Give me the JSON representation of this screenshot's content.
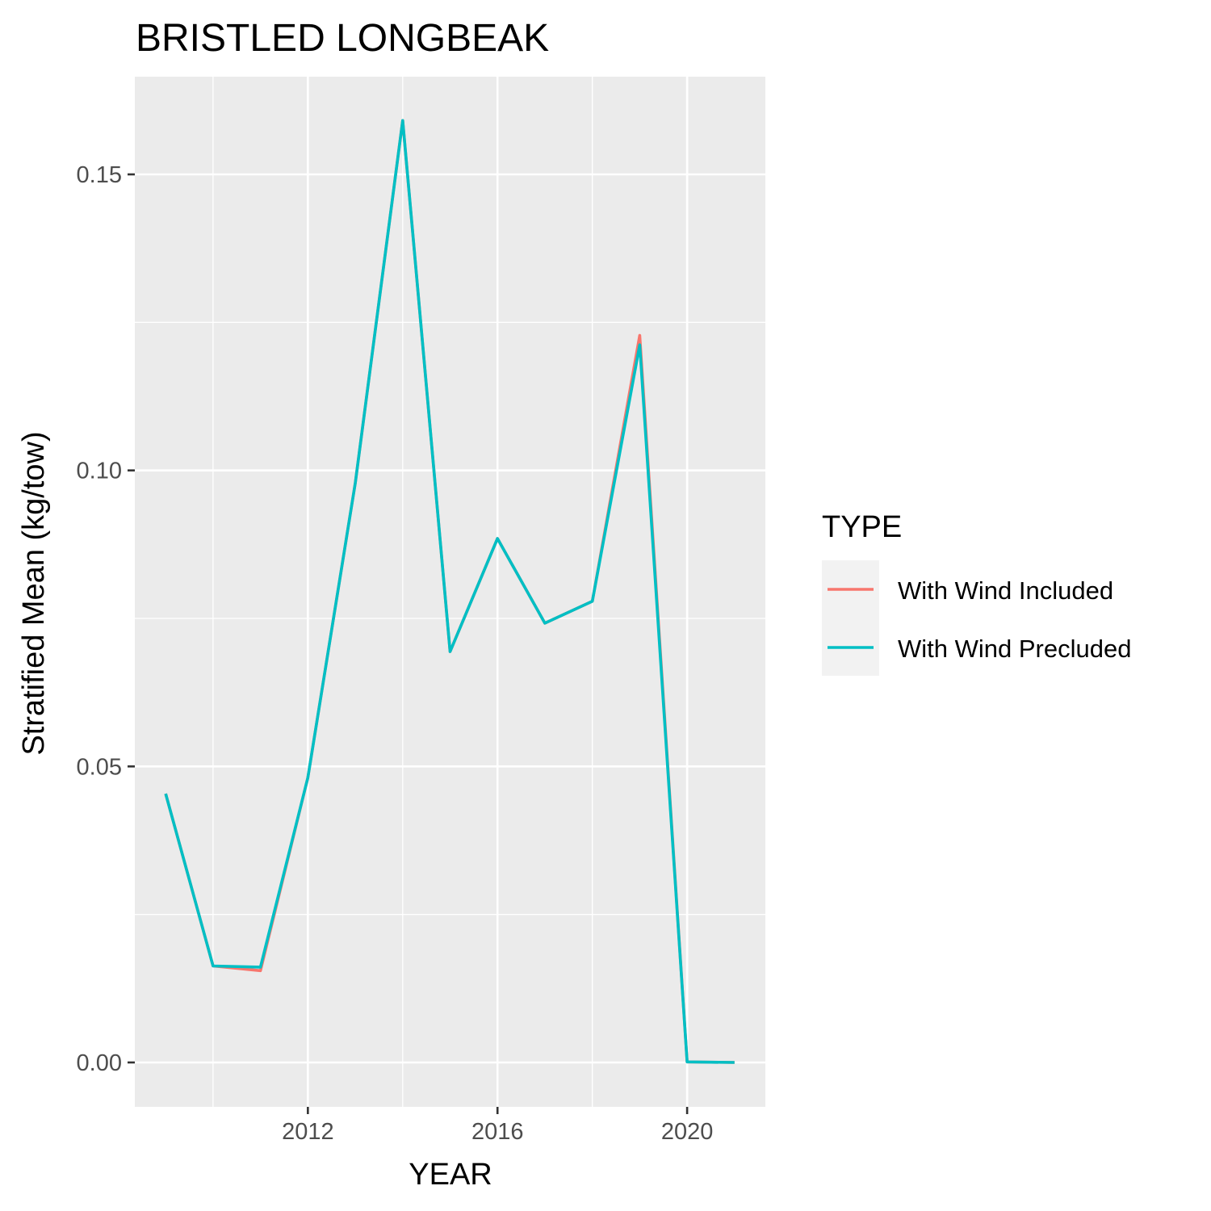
{
  "chart_data": {
    "type": "line",
    "title": "BRISTLED LONGBEAK",
    "xlabel": "YEAR",
    "ylabel": "Stratified Mean (kg/tow)",
    "x": [
      2009,
      2010,
      2011,
      2012,
      2013,
      2014,
      2015,
      2016,
      2017,
      2018,
      2019,
      2020,
      2021
    ],
    "xlim": [
      2008.35,
      2021.65
    ],
    "ylim": [
      -0.0075,
      0.1665
    ],
    "x_ticks": [
      2012,
      2016,
      2020
    ],
    "x_tick_labels": [
      "2012",
      "2016",
      "2020"
    ],
    "x_minor": [
      2010,
      2014,
      2018
    ],
    "y_ticks": [
      0.0,
      0.05,
      0.1,
      0.15
    ],
    "y_tick_labels": [
      "0.00",
      "0.05",
      "0.10",
      "0.15"
    ],
    "y_minor": [
      0.025,
      0.075,
      0.125
    ],
    "grid": true,
    "legend_title": "TYPE",
    "legend_position": "right",
    "series": [
      {
        "name": "With Wind Included",
        "color": "#F8766D",
        "values": [
          0.0454,
          0.0163,
          0.0155,
          0.0481,
          0.0979,
          0.1591,
          0.0694,
          0.0885,
          0.0742,
          0.0779,
          0.1228,
          0.0001,
          0.0
        ]
      },
      {
        "name": "With Wind Precluded",
        "color": "#00BFC4",
        "values": [
          0.0454,
          0.0163,
          0.0161,
          0.0481,
          0.0979,
          0.1591,
          0.0694,
          0.0885,
          0.0742,
          0.0779,
          0.1212,
          0.0001,
          0.0
        ]
      }
    ]
  }
}
